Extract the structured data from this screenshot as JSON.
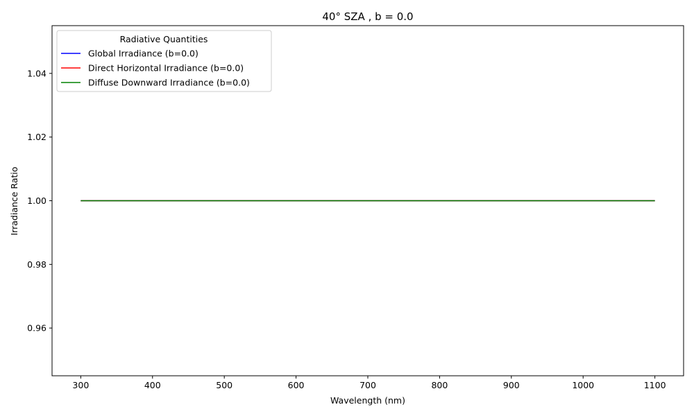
{
  "chart_data": {
    "type": "line",
    "title": "40° SZA , b = 0.0",
    "xlabel": "Wavelength (nm)",
    "ylabel": "Irradiance Ratio",
    "xlim": [
      260,
      1140
    ],
    "ylim": [
      0.945,
      1.055
    ],
    "xticks": [
      300,
      400,
      500,
      600,
      700,
      800,
      900,
      1000,
      1100
    ],
    "yticks": [
      0.96,
      0.98,
      1.0,
      1.02,
      1.04
    ],
    "ytick_labels": [
      "0.96",
      "0.98",
      "1.00",
      "1.02",
      "1.04"
    ],
    "grid": false,
    "legend": {
      "title": "Radiative Quantities",
      "placement": "top-left"
    },
    "series": [
      {
        "name": "Global Irradiance (b=0.0)",
        "color": "#0000ff",
        "x": [
          300,
          1100
        ],
        "y": [
          1.0,
          1.0
        ]
      },
      {
        "name": "Direct Horizontal Irradiance (b=0.0)",
        "color": "#ff0000",
        "x": [
          300,
          1100
        ],
        "y": [
          1.0,
          1.0
        ]
      },
      {
        "name": "Diffuse Downward Irradiance (b=0.0)",
        "color": "#008000",
        "x": [
          300,
          1100
        ],
        "y": [
          1.0,
          1.0
        ]
      }
    ]
  }
}
